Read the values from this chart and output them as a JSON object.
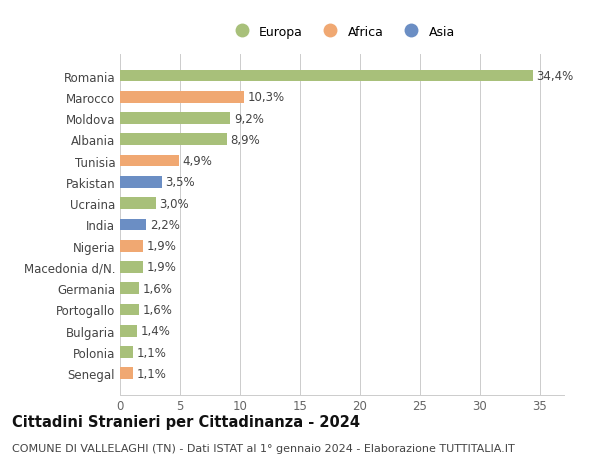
{
  "categories": [
    "Senegal",
    "Polonia",
    "Bulgaria",
    "Portogallo",
    "Germania",
    "Macedonia d/N.",
    "Nigeria",
    "India",
    "Ucraina",
    "Pakistan",
    "Tunisia",
    "Albania",
    "Moldova",
    "Marocco",
    "Romania"
  ],
  "values": [
    1.1,
    1.1,
    1.4,
    1.6,
    1.6,
    1.9,
    1.9,
    2.2,
    3.0,
    3.5,
    4.9,
    8.9,
    9.2,
    10.3,
    34.4
  ],
  "labels": [
    "1,1%",
    "1,1%",
    "1,4%",
    "1,6%",
    "1,6%",
    "1,9%",
    "1,9%",
    "2,2%",
    "3,0%",
    "3,5%",
    "4,9%",
    "8,9%",
    "9,2%",
    "10,3%",
    "34,4%"
  ],
  "continents": [
    "Africa",
    "Europa",
    "Europa",
    "Europa",
    "Europa",
    "Europa",
    "Africa",
    "Asia",
    "Europa",
    "Asia",
    "Africa",
    "Europa",
    "Europa",
    "Africa",
    "Europa"
  ],
  "colors": {
    "Europa": "#a8c07a",
    "Africa": "#f0a872",
    "Asia": "#6b8ec4"
  },
  "legend_items": [
    "Europa",
    "Africa",
    "Asia"
  ],
  "legend_colors": [
    "#a8c07a",
    "#f0a872",
    "#6b8ec4"
  ],
  "xlim": [
    0,
    37
  ],
  "xticks": [
    0,
    5,
    10,
    15,
    20,
    25,
    30,
    35
  ],
  "title": "Cittadini Stranieri per Cittadinanza - 2024",
  "subtitle": "COMUNE DI VALLELAGHI (TN) - Dati ISTAT al 1° gennaio 2024 - Elaborazione TUTTITALIA.IT",
  "bar_height": 0.55,
  "background_color": "#ffffff",
  "grid_color": "#cccccc",
  "label_fontsize": 8.5,
  "tick_fontsize": 8.5,
  "title_fontsize": 10.5,
  "subtitle_fontsize": 8
}
